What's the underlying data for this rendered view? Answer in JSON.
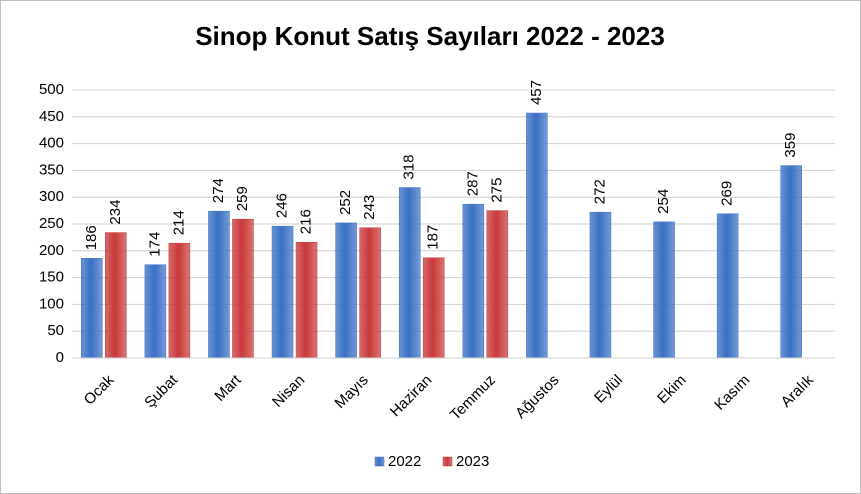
{
  "chart_data": {
    "type": "bar",
    "title": "Sinop Konut Satış Sayıları  2022 - 2023",
    "categories": [
      "Ocak",
      "Şubat",
      "Mart",
      "Nisan",
      "Mayıs",
      "Haziran",
      "Temmuz",
      "Ağustos",
      "Eylül",
      "Ekim",
      "Kasım",
      "Aralık"
    ],
    "series": [
      {
        "name": "2022",
        "color": "#3a6fc4",
        "values": [
          186,
          174,
          274,
          246,
          252,
          318,
          287,
          457,
          272,
          254,
          269,
          359
        ]
      },
      {
        "name": "2023",
        "color": "#c8393a",
        "values": [
          234,
          214,
          259,
          216,
          243,
          187,
          275,
          null,
          null,
          null,
          null,
          null
        ]
      }
    ],
    "ylim": [
      0,
      500
    ],
    "yticks": [
      0,
      50,
      100,
      150,
      200,
      250,
      300,
      350,
      400,
      450,
      500
    ],
    "grid": true,
    "legend": "bottom"
  }
}
